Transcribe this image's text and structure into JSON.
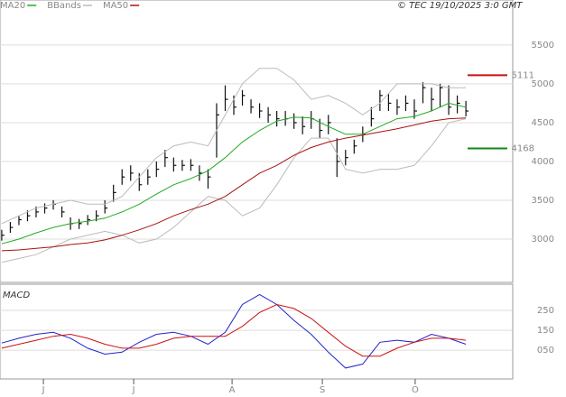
{
  "chart_data": [
    {
      "type": "ohlc",
      "title": "© TEC 19/10/2025 3:0 GMT",
      "x": [
        0,
        2,
        4,
        6,
        8,
        10,
        12,
        14,
        16,
        18,
        20,
        22,
        24,
        26,
        28,
        30,
        32,
        34,
        36,
        38,
        40,
        42,
        44,
        46,
        48,
        50,
        52,
        54,
        56,
        58,
        60,
        62,
        64,
        66,
        68,
        70,
        72,
        74,
        76,
        78,
        80,
        82,
        84,
        86,
        88,
        90,
        92,
        94,
        96,
        98,
        100,
        102,
        104,
        106,
        108
      ],
      "high": [
        3120,
        3220,
        3300,
        3370,
        3420,
        3460,
        3500,
        3420,
        3280,
        3260,
        3310,
        3370,
        3500,
        3700,
        3900,
        3950,
        3850,
        3900,
        4000,
        4150,
        4050,
        4020,
        4030,
        3950,
        3900,
        4750,
        4980,
        4850,
        4920,
        4800,
        4750,
        4700,
        4650,
        4650,
        4620,
        4580,
        4650,
        4550,
        4600,
        4300,
        4150,
        4280,
        4450,
        4700,
        4920,
        4870,
        4800,
        4850,
        4800,
        5020,
        4950,
        5000,
        4980,
        4850,
        4780
      ],
      "low": [
        2980,
        3080,
        3180,
        3230,
        3280,
        3330,
        3380,
        3280,
        3120,
        3130,
        3180,
        3230,
        3330,
        3480,
        3700,
        3750,
        3620,
        3700,
        3800,
        3930,
        3870,
        3880,
        3880,
        3750,
        3650,
        4050,
        4650,
        4600,
        4720,
        4620,
        4560,
        4500,
        4450,
        4460,
        4420,
        4350,
        4420,
        4300,
        4350,
        3800,
        3950,
        4100,
        4250,
        4450,
        4650,
        4650,
        4600,
        4650,
        4550,
        4750,
        4650,
        4700,
        4600,
        4620,
        4580
      ],
      "close": [
        3050,
        3150,
        3250,
        3300,
        3350,
        3400,
        3450,
        3350,
        3200,
        3200,
        3250,
        3300,
        3400,
        3600,
        3800,
        3850,
        3700,
        3800,
        3900,
        4050,
        3950,
        3950,
        3950,
        3850,
        3800,
        4600,
        4800,
        4700,
        4850,
        4700,
        4650,
        4600,
        4550,
        4550,
        4500,
        4450,
        4550,
        4400,
        4500,
        4000,
        4050,
        4200,
        4350,
        4550,
        4850,
        4750,
        4700,
        4750,
        4650,
        4950,
        4800,
        4950,
        4700,
        4750,
        4650
      ],
      "bar_color": "#111111",
      "series": [
        {
          "name": "MA20",
          "color": "#22aa22",
          "x": [
            0,
            4,
            8,
            12,
            16,
            20,
            24,
            28,
            32,
            36,
            40,
            44,
            48,
            52,
            56,
            60,
            64,
            68,
            72,
            76,
            80,
            84,
            88,
            92,
            96,
            100,
            104,
            108
          ],
          "values": [
            2940,
            3000,
            3080,
            3150,
            3200,
            3230,
            3270,
            3350,
            3450,
            3580,
            3700,
            3780,
            3880,
            4050,
            4250,
            4400,
            4520,
            4570,
            4560,
            4450,
            4350,
            4350,
            4450,
            4550,
            4580,
            4650,
            4750,
            4700
          ]
        },
        {
          "name": "BBands",
          "color": "#bbbbbb",
          "x": [
            0,
            4,
            8,
            12,
            16,
            20,
            24,
            28,
            32,
            36,
            40,
            44,
            48,
            52,
            56,
            60,
            64,
            68,
            72,
            76,
            80,
            84,
            88,
            92,
            96,
            100,
            104,
            108
          ],
          "values": [
            3200,
            3300,
            3400,
            3450,
            3500,
            3450,
            3450,
            3550,
            3800,
            4050,
            4200,
            4250,
            4200,
            4600,
            5000,
            5200,
            5200,
            5050,
            4800,
            4850,
            4750,
            4600,
            4750,
            5000,
            5000,
            5000,
            4950,
            4950
          ],
          "lower": [
            2700,
            2750,
            2800,
            2900,
            3000,
            3050,
            3100,
            3050,
            2950,
            3000,
            3150,
            3350,
            3550,
            3500,
            3300,
            3400,
            3700,
            4050,
            4300,
            4300,
            3900,
            3850,
            3900,
            3900,
            3950,
            4200,
            4500,
            4550
          ]
        },
        {
          "name": "MA50",
          "color": "#aa1111",
          "x": [
            0,
            4,
            8,
            12,
            16,
            20,
            24,
            28,
            32,
            36,
            40,
            44,
            48,
            52,
            56,
            60,
            64,
            68,
            72,
            76,
            80,
            84,
            88,
            92,
            96,
            100,
            104,
            108
          ],
          "values": [
            2850,
            2860,
            2880,
            2900,
            2930,
            2950,
            2990,
            3050,
            3120,
            3200,
            3300,
            3380,
            3450,
            3550,
            3700,
            3850,
            3950,
            4080,
            4180,
            4250,
            4300,
            4340,
            4380,
            4420,
            4470,
            4520,
            4550,
            4560
          ]
        }
      ],
      "annotations": [
        {
          "value": 5111,
          "label": "5111",
          "color": "#cc1111"
        },
        {
          "value": 4168,
          "label": "4168",
          "color": "#11881a"
        }
      ],
      "xlim": [
        -0.4,
        118.9
      ],
      "ylim": [
        2535,
        6080
      ],
      "yticks": [
        3000,
        3500,
        4000,
        4500,
        5000,
        5500
      ],
      "grid": true
    },
    {
      "type": "line",
      "title": "MACD",
      "x": [
        0,
        4,
        8,
        12,
        16,
        20,
        24,
        28,
        32,
        36,
        40,
        44,
        48,
        52,
        56,
        60,
        64,
        68,
        72,
        76,
        80,
        84,
        88,
        92,
        96,
        100,
        104,
        108
      ],
      "series": [
        {
          "color": "#2222cc",
          "values": [
            86,
            110,
            130,
            140,
            110,
            60,
            30,
            40,
            90,
            130,
            140,
            120,
            80,
            140,
            280,
            330,
            280,
            200,
            130,
            40,
            -40,
            -20,
            90,
            100,
            90,
            130,
            110,
            80
          ]
        },
        {
          "color": "#cc1111",
          "values": [
            60,
            80,
            100,
            120,
            130,
            110,
            80,
            60,
            60,
            80,
            110,
            120,
            120,
            120,
            170,
            240,
            280,
            260,
            210,
            140,
            70,
            20,
            20,
            60,
            90,
            110,
            110,
            100
          ]
        }
      ],
      "xlim": [
        -0.4,
        118.9
      ],
      "ylim": [
        -95,
        382
      ],
      "yticks": [
        {
          "value": 50,
          "label": "050"
        },
        150,
        250
      ],
      "grid": true,
      "xticks": [
        {
          "value": 9.7,
          "label": "J"
        },
        {
          "value": 30.7,
          "label": "J"
        },
        {
          "value": 53.6,
          "label": "A"
        },
        {
          "value": 74.6,
          "label": "S"
        },
        {
          "value": 96.2,
          "label": "O"
        }
      ]
    }
  ]
}
